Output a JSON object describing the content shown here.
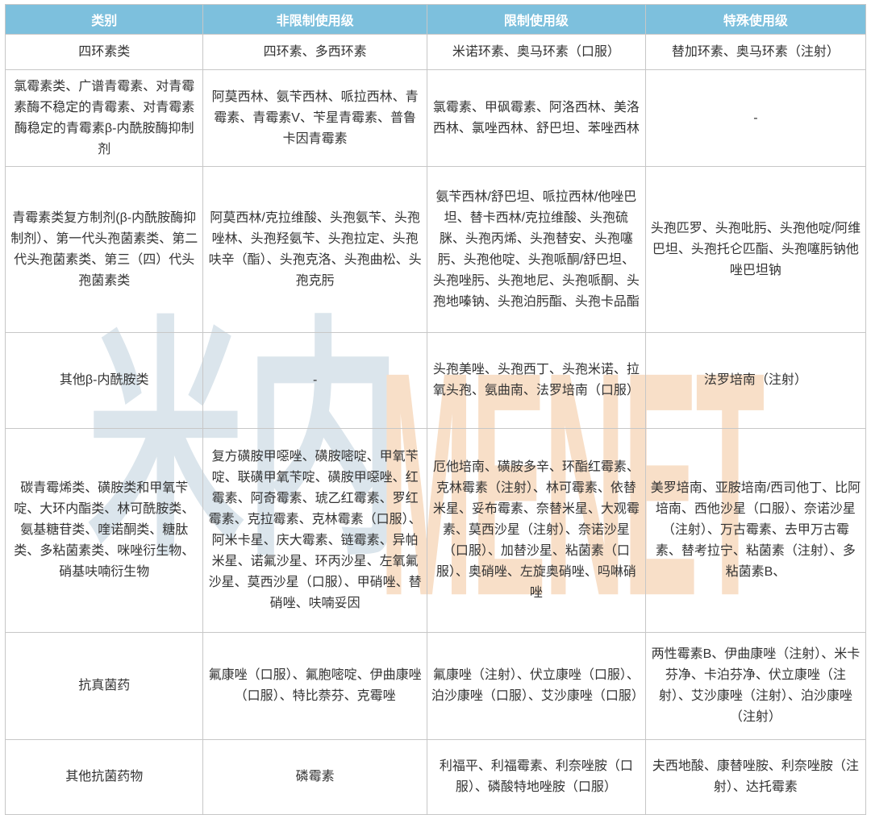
{
  "chart_data": {
    "type": "table",
    "columns": [
      "类别",
      "非限制使用级",
      "限制使用级",
      "特殊使用级"
    ],
    "rows": [
      [
        "四环素类",
        "四环素、多西环素",
        "米诺环素、奥马环素（口服）",
        "替加环素、奥马环素（注射）"
      ],
      [
        "氯霉素类、广谱青霉素、对青霉素酶不稳定的青霉素、对青霉素酶稳定的青霉素β-内酰胺酶抑制剂",
        "阿莫西林、氨苄西林、哌拉西林、青霉素、青霉素V、苄星青霉素、普鲁卡因青霉素",
        "氯霉素、甲砜霉素、阿洛西林、美洛西林、氯唑西林、舒巴坦、苯唑西林",
        "-"
      ],
      [
        "青霉素类复方制剂(β-内酰胺酶抑制剂）、第一代头孢菌素类、第二代头孢菌素类、第三（四）代头孢菌素类",
        "阿莫西林/克拉维酸、头孢氨苄、头孢唑林、头孢羟氨苄、头孢拉定、头孢呋辛（酯）、头孢克洛、头孢曲松、头孢克肟",
        "氨苄西林/舒巴坦、哌拉西林/他唑巴坦、替卡西林/克拉维酸、头孢硫脒、头孢丙烯、头孢替安、头孢噻肟、头孢他啶、头孢哌酮/舒巴坦、头孢唑肟、头孢地尼、头孢哌酮、头孢地嗪钠、头孢泊肟酯、头孢卡品酯",
        "头孢匹罗、头孢吡肟、头孢他啶/阿维巴坦、头孢托仑匹酯、头孢噻肟钠他唑巴坦钠"
      ],
      [
        "其他β-内酰胺类",
        "-",
        "头孢美唑、头孢西丁、头孢米诺、拉氧头孢、氨曲南、法罗培南（口服）",
        "法罗培南（注射）"
      ],
      [
        "碳青霉烯类、磺胺类和甲氧苄啶、大环内酯类、林可酰胺类、氨基糖苷类、喹诺酮类、糖肽类、多粘菌素类、咪唑衍生物、硝基呋喃衍生物",
        "复方磺胺甲噁唑、磺胺嘧啶、甲氧苄啶、联磺甲氧苄啶、磺胺甲噁唑、红霉素、阿奇霉素、琥乙红霉素、罗红霉素、克拉霉素、克林霉素（口服）、阿米卡星、庆大霉素、链霉素、异帕米星、诺氟沙星、环丙沙星、左氧氟沙星、莫西沙星（口服）、甲硝唑、替硝唑、呋喃妥因",
        "厄他培南、磺胺多辛、环酯红霉素、克林霉素（注射）、林可霉素、依替米星、妥布霉素、奈替米星、大观霉素、莫西沙星（注射）、奈诺沙星（口服）、加替沙星、粘菌素（口服）、奥硝唑、左旋奥硝唑、吗啉硝唑",
        "美罗培南、亚胺培南/西司他丁、比阿培南、西他沙星（口服）、奈诺沙星（注射）、万古霉素、去甲万古霉素、替考拉宁、粘菌素（注射）、多粘菌素B、"
      ],
      [
        "抗真菌药",
        "氟康唑（口服）、氟胞嘧啶、伊曲康唑（口服）、特比萘芬、克霉唑",
        "氟康唑（注射）、伏立康唑（口服）、泊沙康唑（口服）、艾沙康唑（口服）",
        "两性霉素B、伊曲康唑（注射）、米卡芬净、卡泊芬净、伏立康唑（注射）、艾沙康唑（注射）、泊沙康唑（注射）"
      ],
      [
        "其他抗菌药物",
        "磷霉素",
        "利福平、利福霉素、利奈唑胺（口服）、磷酸特地唑胺（口服）",
        "夫西地酸、康替唑胺、利奈唑胺（注射）、达托霉素"
      ]
    ]
  },
  "watermark": {
    "cn_text": "米内",
    "en_text": "MENET"
  },
  "colors": {
    "header_bg": "#7DC0DD",
    "header_text": "#FFFFFF",
    "border": "#C7C7C7",
    "body_text": "#333333",
    "watermark_cn": "#DBE5EC",
    "watermark_en": "#F8DFC8"
  }
}
